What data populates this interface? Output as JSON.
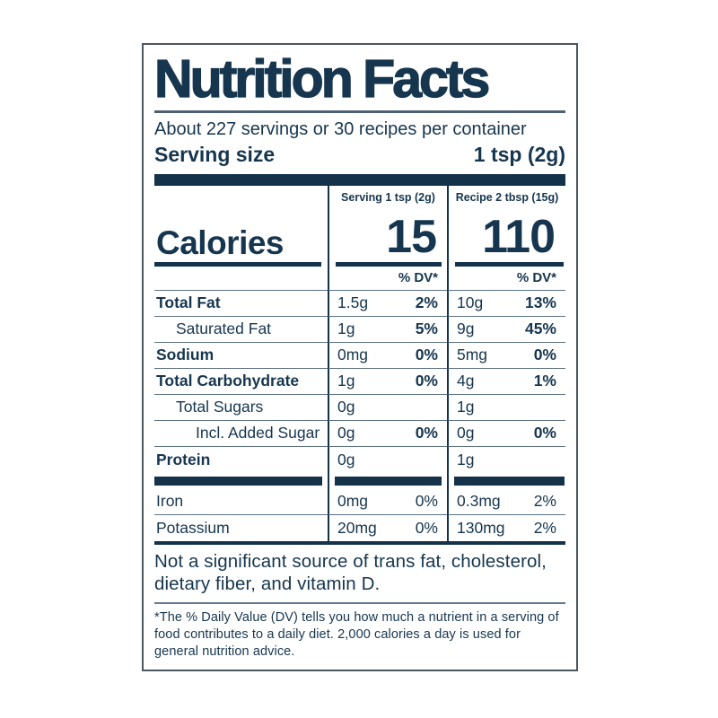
{
  "label": {
    "title": "Nutrition Facts",
    "servings_line": "About 227 servings or 30 recipes per container",
    "serving_size_label": "Serving size",
    "serving_size_value": "1 tsp (2g)",
    "not_significant": "Not a significant source of trans fat, cholesterol, dietary fiber, and vitamin D.",
    "footnote": "*The % Daily Value (DV) tells you how much a nutrient in a serving of food contributes to a daily diet. 2,000 calories a day is used for general nutrition advice."
  },
  "table": {
    "columns": [
      "Serving 1 tsp (2g)",
      "Recipe 2 tbsp (15g)"
    ],
    "calories": {
      "label": "Calories",
      "serving": "15",
      "recipe": "110"
    },
    "dv_header": "% DV*",
    "rows": [
      {
        "name": "Total Fat",
        "serving": {
          "amount": "1.5g",
          "dv": "2%"
        },
        "recipe": {
          "amount": "10g",
          "dv": "13%"
        }
      },
      {
        "name": "Saturated Fat",
        "serving": {
          "amount": "1g",
          "dv": "5%"
        },
        "recipe": {
          "amount": "9g",
          "dv": "45%"
        }
      },
      {
        "name": "Sodium",
        "serving": {
          "amount": "0mg",
          "dv": "0%"
        },
        "recipe": {
          "amount": "5mg",
          "dv": "0%"
        }
      },
      {
        "name": "Total Carbohydrate",
        "serving": {
          "amount": "1g",
          "dv": "0%"
        },
        "recipe": {
          "amount": "4g",
          "dv": "1%"
        }
      },
      {
        "name": "Total Sugars",
        "serving": {
          "amount": "0g",
          "dv": ""
        },
        "recipe": {
          "amount": "1g",
          "dv": ""
        }
      },
      {
        "name": "Incl. Added Sugar",
        "serving": {
          "amount": "0g",
          "dv": "0%"
        },
        "recipe": {
          "amount": "0g",
          "dv": "0%"
        }
      },
      {
        "name": "Protein",
        "serving": {
          "amount": "0g",
          "dv": ""
        },
        "recipe": {
          "amount": "1g",
          "dv": ""
        }
      },
      {
        "name": "Iron",
        "serving": {
          "amount": "0mg",
          "dv": "0%"
        },
        "recipe": {
          "amount": "0.3mg",
          "dv": "2%"
        }
      },
      {
        "name": "Potassium",
        "serving": {
          "amount": "20mg",
          "dv": "0%"
        },
        "recipe": {
          "amount": "130mg",
          "dv": "2%"
        }
      }
    ]
  },
  "colors": {
    "navy": "#14334B",
    "hairline": "#5E7284",
    "border": "#4A5862"
  }
}
